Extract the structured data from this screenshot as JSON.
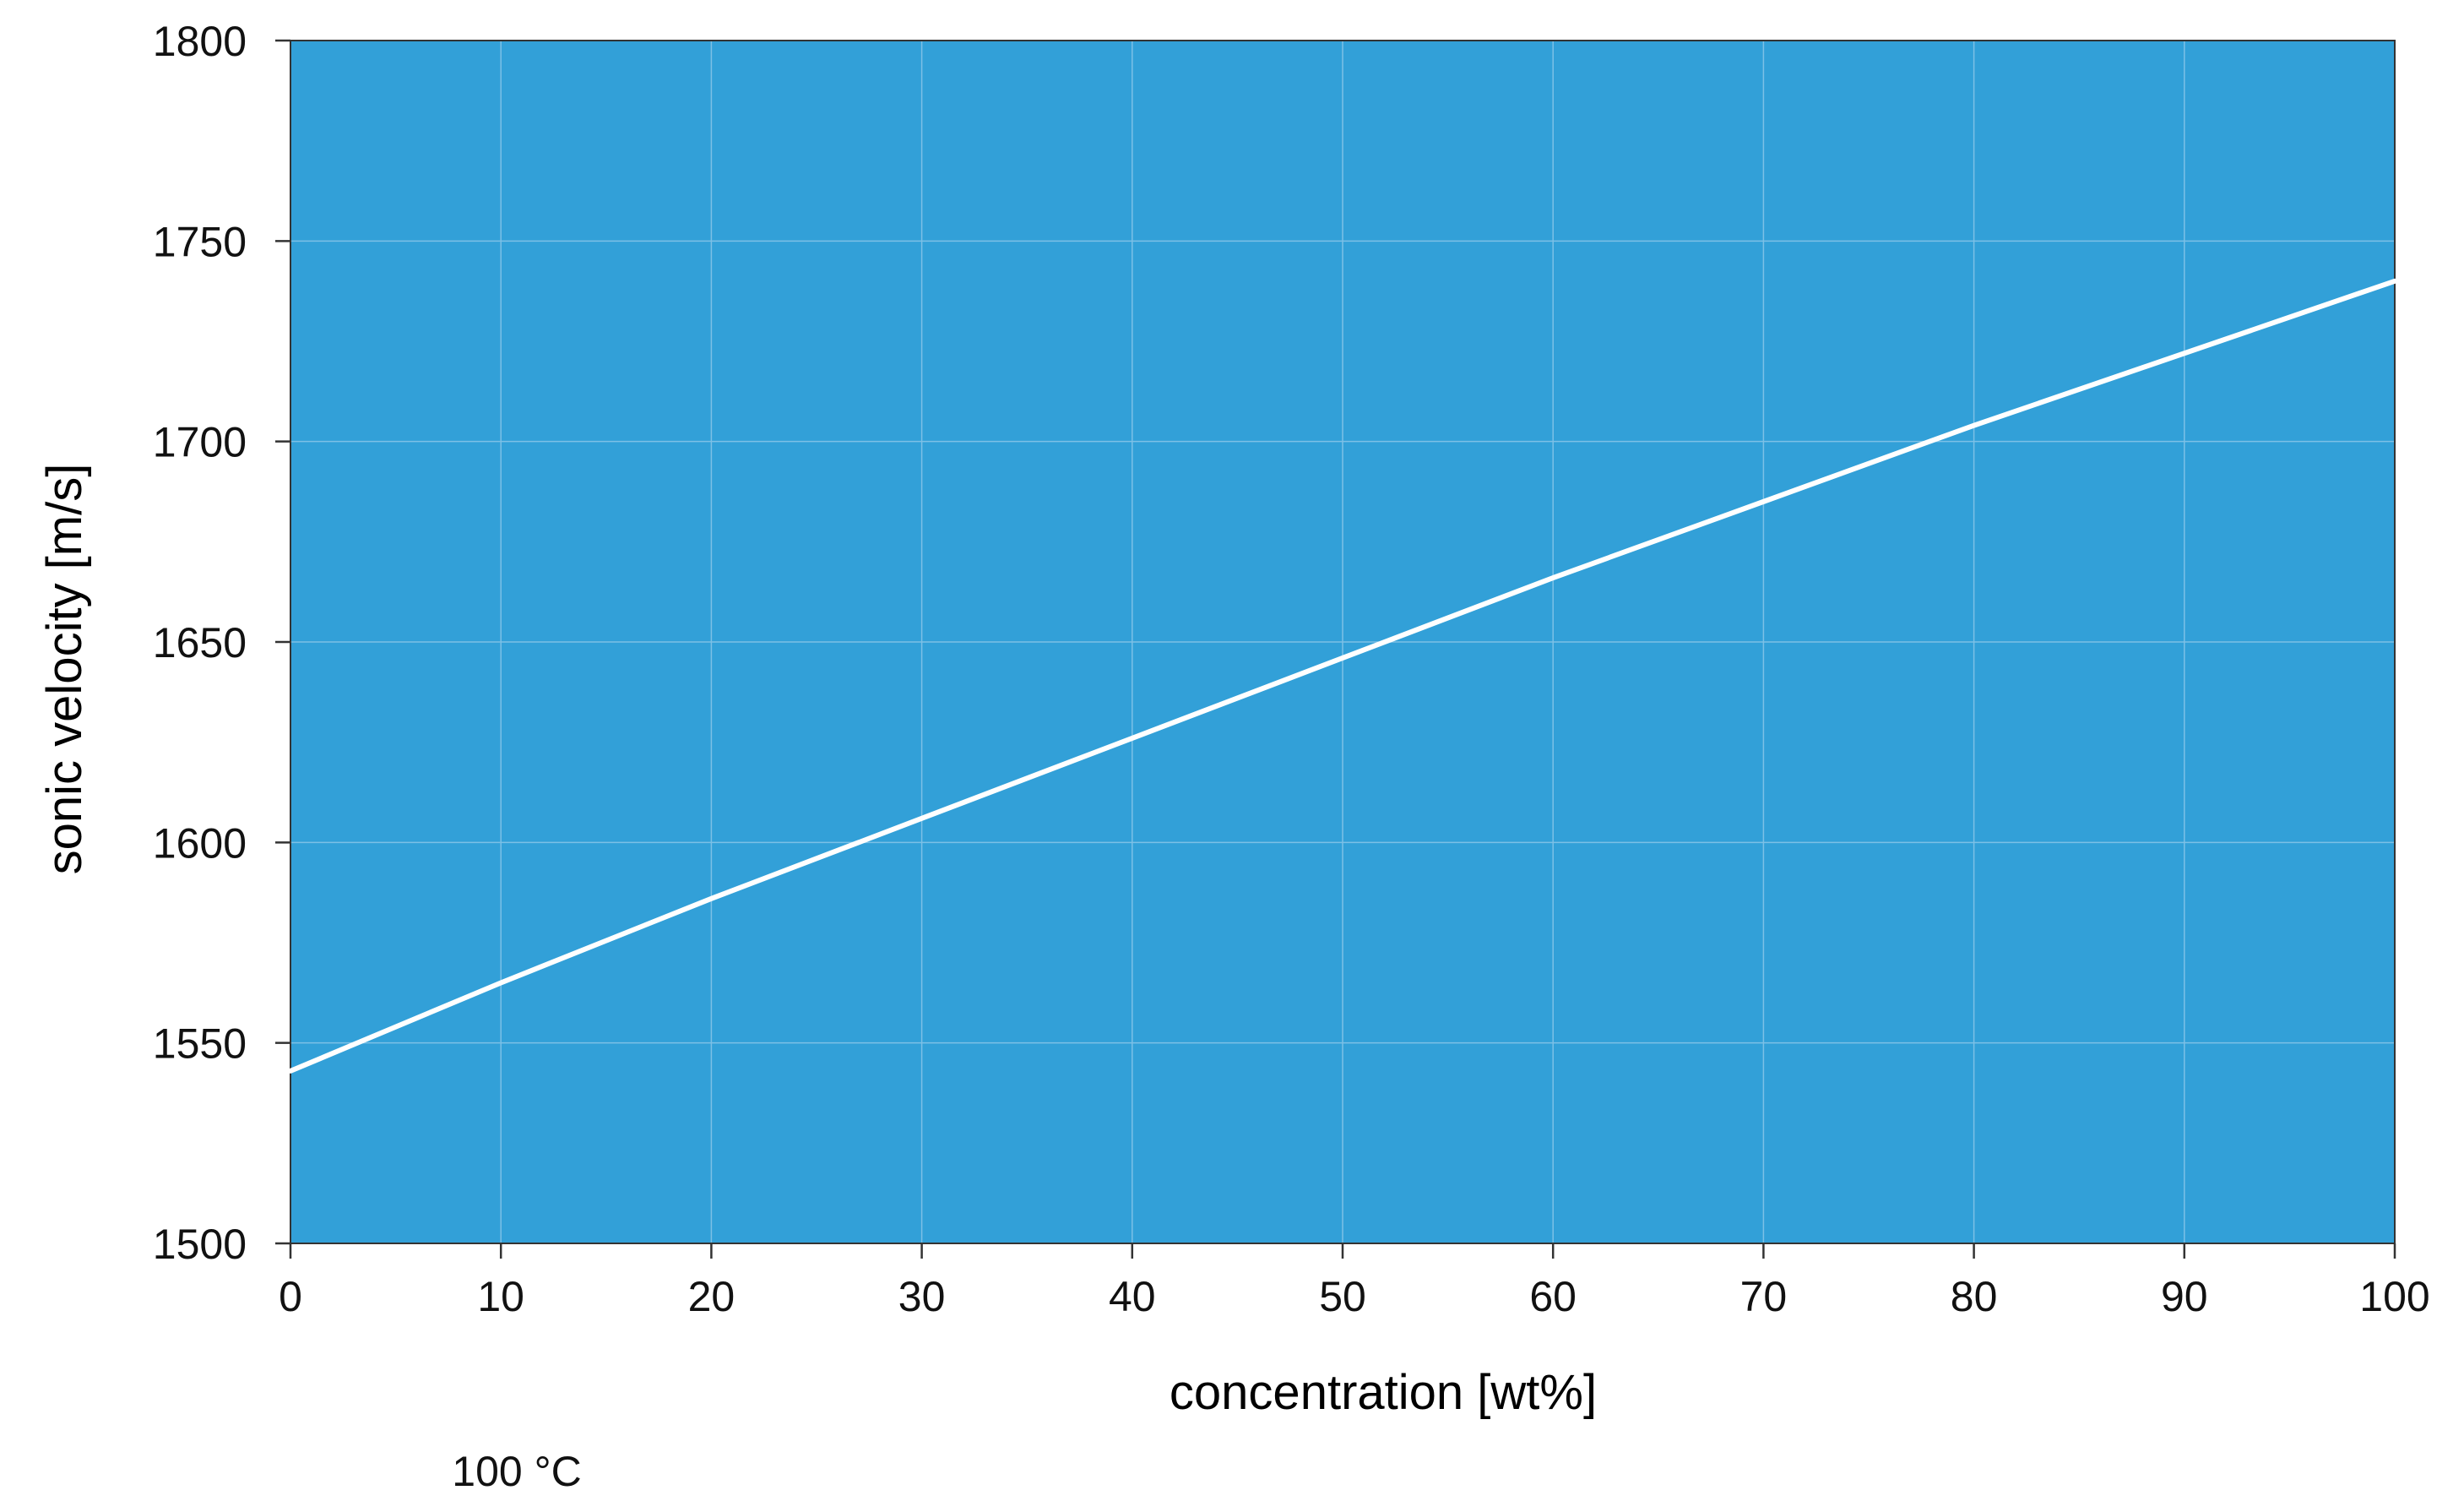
{
  "chart_data": {
    "type": "line",
    "title": "",
    "xlabel": "concentration [wt%]",
    "ylabel": "sonic velocity [m/s]",
    "annotation": "100 °C",
    "xlim": [
      0,
      100
    ],
    "ylim": [
      1500,
      1800
    ],
    "xticks": [
      0,
      10,
      20,
      30,
      40,
      50,
      60,
      70,
      80,
      90,
      100
    ],
    "yticks": [
      1500,
      1550,
      1600,
      1650,
      1700,
      1750,
      1800
    ],
    "grid": true,
    "legend": "none",
    "series": [
      {
        "x": [
          0,
          10,
          20,
          30,
          40,
          50,
          60,
          70,
          80,
          90,
          100
        ],
        "y": [
          1543,
          1565,
          1586,
          1606,
          1626,
          1646,
          1666,
          1685,
          1704,
          1722,
          1740
        ],
        "color": "#ffffff"
      }
    ],
    "colors": {
      "plot_background": "#32a0d8",
      "grid": "#7cc0e6",
      "axis": "#333333",
      "line": "#ffffff"
    }
  }
}
